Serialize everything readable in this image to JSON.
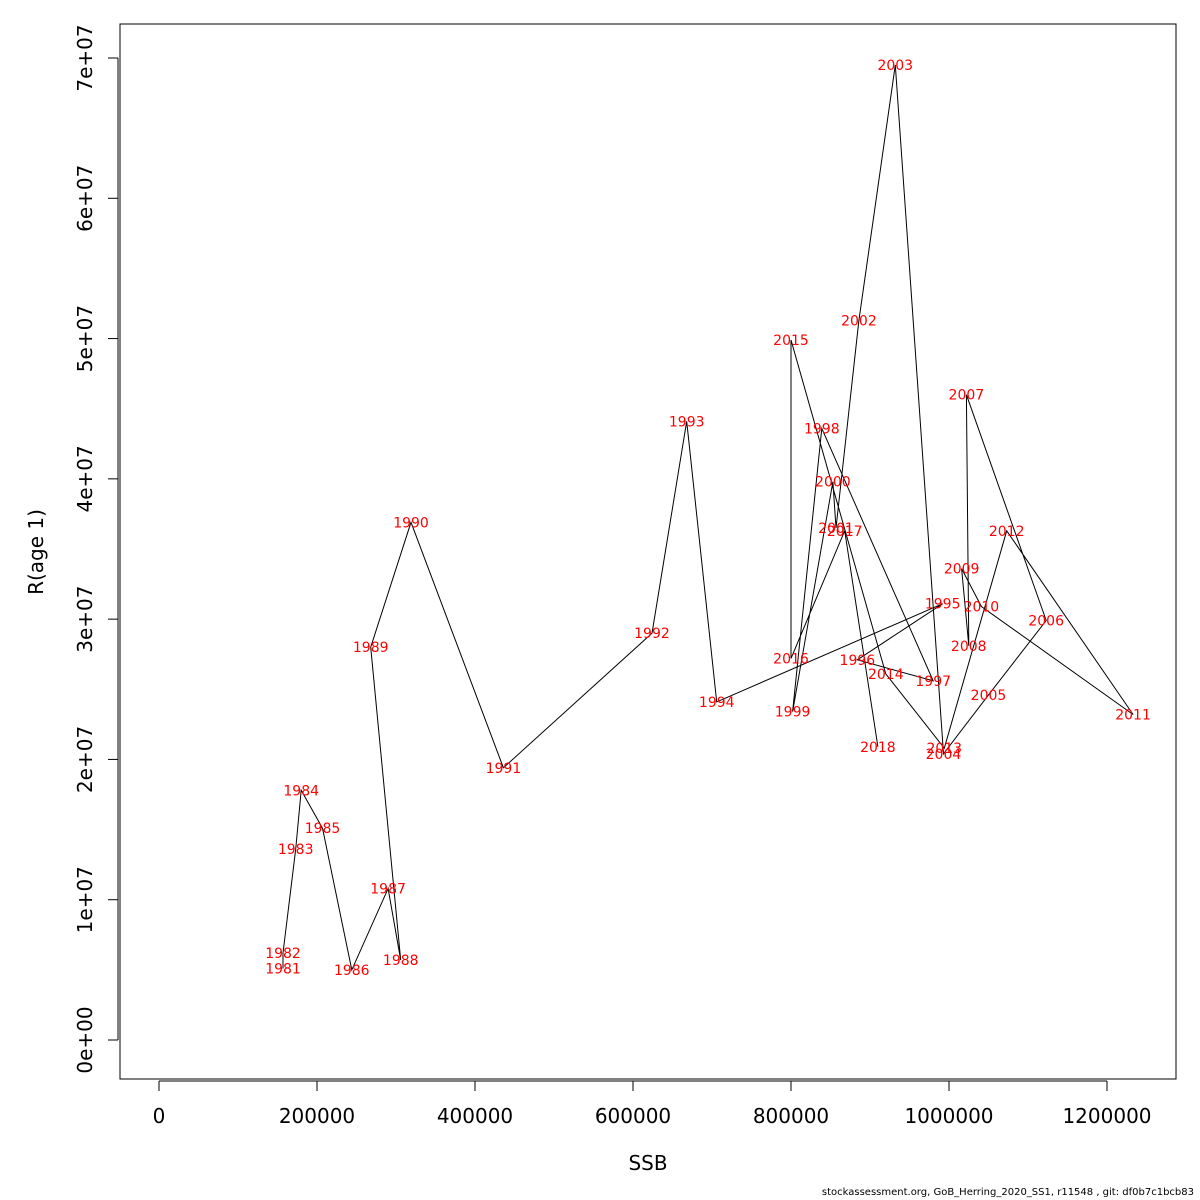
{
  "footer": "stockassessment.org, GoB_Herring_2020_SS1, r11548 , git: df0b7c1bcb83",
  "chart_data": {
    "type": "line",
    "xlabel": "SSB",
    "ylabel": "R(age 1)",
    "xlim": [
      0,
      1200000
    ],
    "ylim": [
      0,
      70000000
    ],
    "xticks": [
      0,
      200000,
      400000,
      600000,
      800000,
      1000000,
      1200000
    ],
    "xtick_labels": [
      "0",
      "200000",
      "400000",
      "600000",
      "800000",
      "1000000",
      "1200000"
    ],
    "yticks": [
      0,
      10000000,
      20000000,
      30000000,
      40000000,
      50000000,
      60000000,
      70000000
    ],
    "ytick_labels": [
      "0e+00",
      "1e+07",
      "2e+07",
      "3e+07",
      "4e+07",
      "5e+07",
      "6e+07",
      "7e+07"
    ],
    "label_color": "#ff0000",
    "line_color": "#000000",
    "points": [
      {
        "label": "1981",
        "x": 157000,
        "y": 5100000
      },
      {
        "label": "1982",
        "x": 157000,
        "y": 6200000
      },
      {
        "label": "1983",
        "x": 173000,
        "y": 13600000
      },
      {
        "label": "1984",
        "x": 180000,
        "y": 17800000
      },
      {
        "label": "1985",
        "x": 207000,
        "y": 15100000
      },
      {
        "label": "1986",
        "x": 244000,
        "y": 5000000
      },
      {
        "label": "1987",
        "x": 290000,
        "y": 10800000
      },
      {
        "label": "1988",
        "x": 306000,
        "y": 5700000
      },
      {
        "label": "1989",
        "x": 268000,
        "y": 28000000
      },
      {
        "label": "1990",
        "x": 319000,
        "y": 36900000
      },
      {
        "label": "1991",
        "x": 436000,
        "y": 19400000
      },
      {
        "label": "1992",
        "x": 624000,
        "y": 29000000
      },
      {
        "label": "1993",
        "x": 668000,
        "y": 44100000
      },
      {
        "label": "1994",
        "x": 706000,
        "y": 24100000
      },
      {
        "label": "1995",
        "x": 992000,
        "y": 31100000
      },
      {
        "label": "1996",
        "x": 884000,
        "y": 27100000
      },
      {
        "label": "1997",
        "x": 980000,
        "y": 25600000
      },
      {
        "label": "1998",
        "x": 839000,
        "y": 43600000
      },
      {
        "label": "1999",
        "x": 802000,
        "y": 23400000
      },
      {
        "label": "2000",
        "x": 853000,
        "y": 39800000
      },
      {
        "label": "2001",
        "x": 857000,
        "y": 36500000
      },
      {
        "label": "2002",
        "x": 886000,
        "y": 51300000
      },
      {
        "label": "2003",
        "x": 932000,
        "y": 69500000
      },
      {
        "label": "2004",
        "x": 993000,
        "y": 20400000
      },
      {
        "label": "2005",
        "x": 1050000,
        "y": 24600000
      },
      {
        "label": "2006",
        "x": 1123000,
        "y": 29900000
      },
      {
        "label": "2007",
        "x": 1022000,
        "y": 46000000
      },
      {
        "label": "2008",
        "x": 1025000,
        "y": 28100000
      },
      {
        "label": "2009",
        "x": 1016000,
        "y": 33600000
      },
      {
        "label": "2010",
        "x": 1041000,
        "y": 30900000
      },
      {
        "label": "2011",
        "x": 1233000,
        "y": 23200000
      },
      {
        "label": "2012",
        "x": 1073000,
        "y": 36300000
      },
      {
        "label": "2013",
        "x": 994000,
        "y": 20800000
      },
      {
        "label": "2014",
        "x": 920000,
        "y": 26100000
      },
      {
        "label": "2015",
        "x": 800000,
        "y": 49900000
      },
      {
        "label": "2016",
        "x": 800000,
        "y": 27200000
      },
      {
        "label": "2017",
        "x": 868000,
        "y": 36300000
      },
      {
        "label": "2018",
        "x": 910000,
        "y": 20900000
      }
    ]
  }
}
